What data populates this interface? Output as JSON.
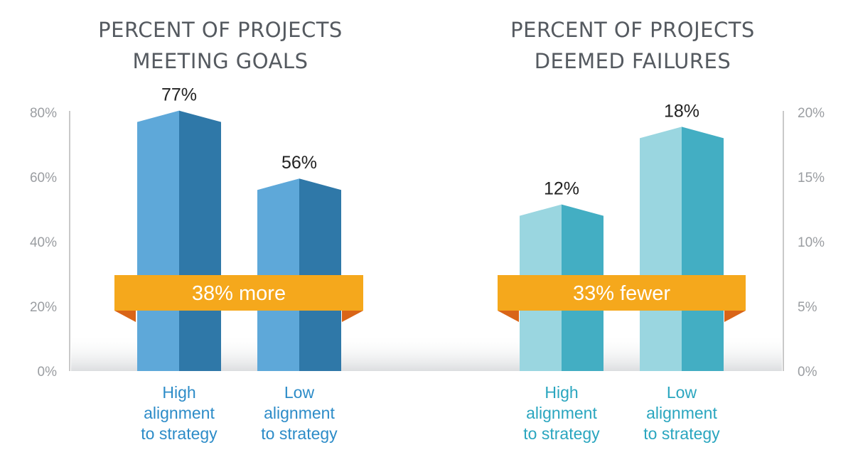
{
  "chart_data": [
    {
      "type": "bar",
      "title": "PERCENT OF PROJECTS\nMEETING GOALS",
      "categories": [
        "High\nalignment\nto strategy",
        "Low\nalignment\nto strategy"
      ],
      "values": [
        77,
        56
      ],
      "value_labels": [
        "77%",
        "56%"
      ],
      "ylim": [
        0,
        80
      ],
      "yticks": [
        "0%",
        "20%",
        "40%",
        "60%",
        "80%"
      ],
      "axis_side": "left",
      "annotation": "38% more",
      "colors": {
        "bar_front": "#5ea8d9",
        "bar_side": "#2f78a8",
        "category_text": "#2d8cc8"
      }
    },
    {
      "type": "bar",
      "title": "PERCENT OF PROJECTS\nDEEMED FAILURES",
      "categories": [
        "High\nalignment\nto strategy",
        "Low\nalignment\nto strategy"
      ],
      "values": [
        12,
        18
      ],
      "value_labels": [
        "12%",
        "18%"
      ],
      "ylim": [
        0,
        20
      ],
      "yticks": [
        "0%",
        "5%",
        "10%",
        "15%",
        "20%"
      ],
      "axis_side": "right",
      "annotation": "33% fewer",
      "colors": {
        "bar_front": "#9ad6e0",
        "bar_side": "#43aec3",
        "category_text": "#2aa6bf"
      }
    }
  ],
  "colors": {
    "banner": "#f5a81c",
    "banner_fold": "#d96518",
    "axis": "#c9c9c9",
    "title": "#555a60"
  }
}
